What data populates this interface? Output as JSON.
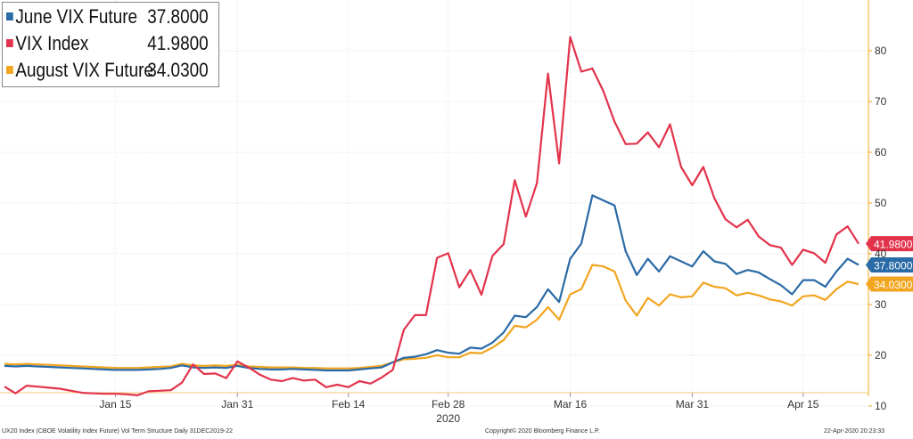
{
  "colors": {
    "june": "#2a6aa6",
    "vix": "#e2334b",
    "august": "#f2a51f",
    "grid": "#e0e0e0",
    "axis": "#f2a51f"
  },
  "footer": {
    "left": "UX20 Index (CBOE Volatility Index Future) Vol Term Structure  Daily 31DEC2019-22",
    "center": "Copyright© 2020 Bloomberg Finance L.P.",
    "right": "22-Apr-2020 20:23:33"
  },
  "chart_data": {
    "type": "line",
    "x": [
      "2019-12-31",
      "2020-01-02",
      "2020-01-03",
      "2020-01-06",
      "2020-01-07",
      "2020-01-08",
      "2020-01-09",
      "2020-01-10",
      "2020-01-13",
      "2020-01-14",
      "2020-01-15",
      "2020-01-16",
      "2020-01-17",
      "2020-01-21",
      "2020-01-22",
      "2020-01-23",
      "2020-01-24",
      "2020-01-27",
      "2020-01-28",
      "2020-01-29",
      "2020-01-30",
      "2020-01-31",
      "2020-02-03",
      "2020-02-04",
      "2020-02-05",
      "2020-02-06",
      "2020-02-07",
      "2020-02-10",
      "2020-02-11",
      "2020-02-12",
      "2020-02-13",
      "2020-02-14",
      "2020-02-18",
      "2020-02-19",
      "2020-02-20",
      "2020-02-21",
      "2020-02-24",
      "2020-02-25",
      "2020-02-26",
      "2020-02-27",
      "2020-02-28",
      "2020-03-02",
      "2020-03-03",
      "2020-03-04",
      "2020-03-05",
      "2020-03-06",
      "2020-03-09",
      "2020-03-10",
      "2020-03-11",
      "2020-03-12",
      "2020-03-13",
      "2020-03-16",
      "2020-03-17",
      "2020-03-18",
      "2020-03-19",
      "2020-03-20",
      "2020-03-23",
      "2020-03-24",
      "2020-03-25",
      "2020-03-26",
      "2020-03-27",
      "2020-03-30",
      "2020-03-31",
      "2020-04-01",
      "2020-04-02",
      "2020-04-03",
      "2020-04-06",
      "2020-04-07",
      "2020-04-08",
      "2020-04-09",
      "2020-04-13",
      "2020-04-14",
      "2020-04-15",
      "2020-04-16",
      "2020-04-17",
      "2020-04-20",
      "2020-04-21",
      "2020-04-22"
    ],
    "series": [
      {
        "name": "June VIX Future",
        "color": "#2a6aa6",
        "last": "37.8000",
        "values": [
          17.9,
          17.8,
          17.9,
          17.8,
          17.7,
          17.6,
          17.5,
          17.4,
          17.3,
          17.2,
          17.1,
          17.1,
          17.1,
          17.2,
          17.3,
          17.5,
          18.0,
          17.6,
          17.5,
          17.6,
          17.5,
          17.9,
          17.5,
          17.3,
          17.2,
          17.2,
          17.3,
          17.2,
          17.1,
          17.0,
          17.0,
          17.0,
          17.2,
          17.4,
          17.6,
          18.6,
          19.5,
          19.7,
          20.2,
          21.0,
          20.5,
          20.3,
          21.5,
          21.3,
          22.5,
          24.5,
          27.8,
          27.5,
          29.5,
          33.0,
          30.5,
          39.0,
          42.0,
          51.5,
          50.5,
          49.5,
          40.5,
          35.8,
          39.0,
          36.5,
          39.5,
          38.5,
          37.5,
          40.5,
          38.5,
          38.0,
          36.0,
          36.8,
          36.3,
          35.0,
          33.8,
          32.0,
          34.8,
          34.8,
          33.5,
          36.5,
          39.0,
          37.8
        ]
      },
      {
        "name": "VIX Index",
        "color": "#e2334b",
        "last": "41.9800",
        "values": [
          13.8,
          12.5,
          14.0,
          13.8,
          13.6,
          13.4,
          13.0,
          12.6,
          12.5,
          12.4,
          12.4,
          12.3,
          12.1,
          12.9,
          13.0,
          13.1,
          14.6,
          18.2,
          16.3,
          16.4,
          15.5,
          18.8,
          17.6,
          16.2,
          15.2,
          14.9,
          15.5,
          15.0,
          15.2,
          13.7,
          14.2,
          13.7,
          14.9,
          14.4,
          15.6,
          17.1,
          25.0,
          27.9,
          27.9,
          39.2,
          40.1,
          33.4,
          36.8,
          31.9,
          39.6,
          41.9,
          54.5,
          47.3,
          53.9,
          75.5,
          57.8,
          82.7,
          75.9,
          76.5,
          72.0,
          66.0,
          61.6,
          61.7,
          63.9,
          61.0,
          65.5,
          57.1,
          53.5,
          57.1,
          50.9,
          46.8,
          45.2,
          46.7,
          43.4,
          41.7,
          41.2,
          37.8,
          40.8,
          40.1,
          38.2,
          43.8,
          45.4,
          41.98
        ]
      },
      {
        "name": "August VIX Future",
        "color": "#f2a51f",
        "last": "34.0300",
        "values": [
          18.3,
          18.2,
          18.3,
          18.2,
          18.1,
          18.0,
          17.9,
          17.8,
          17.7,
          17.6,
          17.5,
          17.5,
          17.5,
          17.6,
          17.7,
          17.8,
          18.3,
          18.0,
          17.9,
          18.0,
          17.9,
          18.1,
          17.8,
          17.7,
          17.6,
          17.6,
          17.6,
          17.5,
          17.5,
          17.4,
          17.4,
          17.4,
          17.5,
          17.7,
          17.9,
          18.6,
          19.2,
          19.3,
          19.5,
          20.0,
          19.6,
          19.6,
          20.5,
          20.4,
          21.5,
          23.0,
          25.8,
          25.5,
          27.0,
          29.5,
          27.0,
          32.0,
          33.0,
          37.8,
          37.5,
          36.5,
          30.8,
          27.8,
          31.3,
          29.8,
          32.0,
          31.4,
          31.6,
          34.3,
          33.5,
          33.2,
          31.8,
          32.3,
          31.8,
          31.0,
          30.6,
          29.8,
          31.6,
          31.8,
          30.9,
          33.0,
          34.5,
          34.03
        ]
      }
    ],
    "legend": [
      {
        "label": "June VIX Future",
        "value": "37.8000"
      },
      {
        "label": "VIX Index",
        "value": "41.9800"
      },
      {
        "label": "August VIX Future",
        "value": "34.0300"
      }
    ],
    "xticks": [
      {
        "date": "2020-01-15",
        "label": "Jan 15"
      },
      {
        "date": "2020-01-31",
        "label": "Jan 31"
      },
      {
        "date": "2020-02-14",
        "label": "Feb 14"
      },
      {
        "date": "2020-02-28",
        "label": "Feb 28"
      },
      {
        "date": "2020-03-16",
        "label": "Mar 16"
      },
      {
        "date": "2020-03-31",
        "label": "Mar 31"
      },
      {
        "date": "2020-04-15",
        "label": "Apr 15"
      }
    ],
    "year_label": "2020",
    "yticks": [
      10,
      20,
      30,
      40,
      50,
      60,
      70,
      80
    ],
    "ylim": [
      7,
      90
    ],
    "y_axis_side": "right",
    "grid": true,
    "legend_placement": "top-left"
  }
}
